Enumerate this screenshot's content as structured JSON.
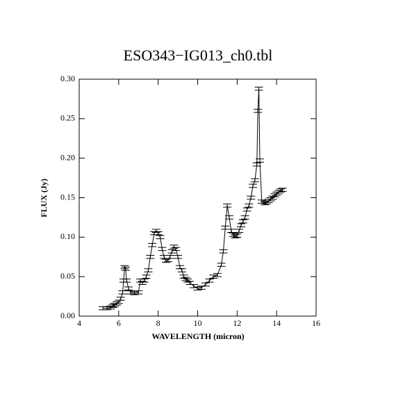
{
  "chart_data": {
    "type": "errorline",
    "title": "ESO343−IG013_ch0.tbl",
    "x_label": "WAVELENGTH (micron)",
    "y_label": "FLUX (Jy)",
    "color": "#000000",
    "xlim": [
      4,
      16
    ],
    "xticks": [
      4,
      6,
      8,
      10,
      12,
      14,
      16
    ],
    "ylim": [
      0,
      0.3
    ],
    "yticks": [
      {
        "value": 0,
        "label": "0.00"
      },
      {
        "value": 0.05,
        "label": "0.05"
      },
      {
        "value": 0.1,
        "label": "0.10"
      },
      {
        "value": 0.15,
        "label": "0.15"
      },
      {
        "value": 0.2,
        "label": "0.20"
      },
      {
        "value": 0.25,
        "label": "0.25"
      },
      {
        "value": 0.3,
        "label": "0.30"
      }
    ],
    "grid": false,
    "x": [
      5.2,
      5.4,
      5.6,
      5.7,
      5.8,
      5.9,
      6.0,
      6.1,
      6.2,
      6.25,
      6.3,
      6.35,
      6.4,
      6.5,
      6.6,
      6.8,
      7.0,
      7.1,
      7.2,
      7.3,
      7.4,
      7.5,
      7.6,
      7.7,
      7.8,
      7.9,
      8.0,
      8.1,
      8.2,
      8.3,
      8.4,
      8.5,
      8.6,
      8.7,
      8.8,
      8.9,
      9.0,
      9.1,
      9.2,
      9.3,
      9.4,
      9.5,
      9.6,
      9.8,
      10.0,
      10.2,
      10.4,
      10.6,
      10.8,
      11.0,
      11.2,
      11.3,
      11.4,
      11.5,
      11.6,
      11.7,
      11.8,
      11.9,
      12.0,
      12.1,
      12.2,
      12.3,
      12.4,
      12.5,
      12.6,
      12.7,
      12.8,
      12.9,
      13.0,
      13.05,
      13.1,
      13.15,
      13.25,
      13.4,
      13.5,
      13.6,
      13.7,
      13.8,
      13.9,
      14.0,
      14.1,
      14.2,
      14.3
    ],
    "values": [
      0.01,
      0.01,
      0.011,
      0.013,
      0.014,
      0.016,
      0.018,
      0.022,
      0.03,
      0.045,
      0.062,
      0.06,
      0.045,
      0.035,
      0.03,
      0.029,
      0.03,
      0.045,
      0.042,
      0.045,
      0.05,
      0.058,
      0.075,
      0.09,
      0.105,
      0.108,
      0.105,
      0.1,
      0.085,
      0.075,
      0.07,
      0.071,
      0.075,
      0.082,
      0.088,
      0.085,
      0.075,
      0.062,
      0.058,
      0.05,
      0.047,
      0.045,
      0.042,
      0.038,
      0.035,
      0.036,
      0.04,
      0.045,
      0.05,
      0.052,
      0.065,
      0.082,
      0.112,
      0.14,
      0.125,
      0.108,
      0.103,
      0.101,
      0.102,
      0.108,
      0.115,
      0.12,
      0.125,
      0.135,
      0.14,
      0.15,
      0.165,
      0.172,
      0.192,
      0.26,
      0.288,
      0.197,
      0.145,
      0.143,
      0.144,
      0.146,
      0.148,
      0.15,
      0.153,
      0.155,
      0.157,
      0.159,
      0.16
    ],
    "errors": [
      0.002,
      0.002,
      0.002,
      0.002,
      0.002,
      0.002,
      0.002,
      0.002,
      0.002,
      0.002,
      0.002,
      0.002,
      0.002,
      0.002,
      0.002,
      0.002,
      0.002,
      0.002,
      0.002,
      0.002,
      0.002,
      0.002,
      0.002,
      0.002,
      0.002,
      0.002,
      0.002,
      0.002,
      0.002,
      0.002,
      0.002,
      0.002,
      0.002,
      0.002,
      0.002,
      0.002,
      0.002,
      0.002,
      0.002,
      0.002,
      0.002,
      0.002,
      0.002,
      0.002,
      0.002,
      0.002,
      0.002,
      0.002,
      0.002,
      0.002,
      0.002,
      0.002,
      0.002,
      0.002,
      0.002,
      0.002,
      0.002,
      0.002,
      0.002,
      0.002,
      0.002,
      0.002,
      0.002,
      0.002,
      0.002,
      0.002,
      0.002,
      0.002,
      0.002,
      0.002,
      0.002,
      0.002,
      0.002,
      0.002,
      0.002,
      0.002,
      0.002,
      0.002,
      0.002,
      0.002,
      0.002,
      0.002,
      0.002
    ]
  }
}
